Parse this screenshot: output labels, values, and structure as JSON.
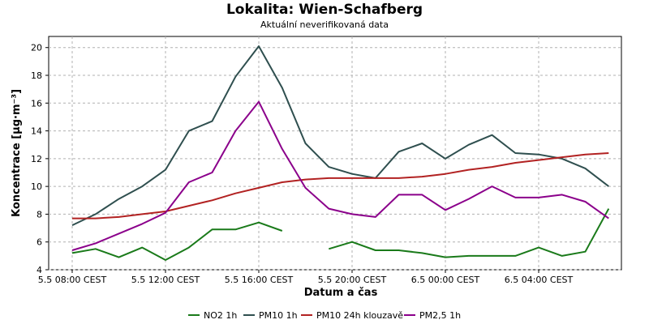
{
  "chart_data": {
    "type": "line",
    "title": "Lokalita: Wien-Schafberg",
    "subtitle": "Aktuální neverifikovaná data",
    "xlabel": "Datum a čas",
    "ylabel": "Koncentrace [µg·m⁻³]",
    "ylim": [
      4,
      20.8
    ],
    "yticks": [
      4,
      6,
      8,
      10,
      12,
      14,
      16,
      18,
      20
    ],
    "x": [
      "5.5 08:00",
      "5.5 09:00",
      "5.5 10:00",
      "5.5 11:00",
      "5.5 12:00",
      "5.5 13:00",
      "5.5 14:00",
      "5.5 15:00",
      "5.5 16:00",
      "5.5 17:00",
      "5.5 18:00",
      "5.5 19:00",
      "5.5 20:00",
      "5.5 21:00",
      "5.5 22:00",
      "5.5 23:00",
      "6.5 00:00",
      "6.5 01:00",
      "6.5 02:00",
      "6.5 03:00",
      "6.5 04:00",
      "6.5 05:00",
      "6.5 06:00",
      "6.5 07:00"
    ],
    "xticks": [
      "5.5 08:00 CEST",
      "5.5 12:00 CEST",
      "5.5 16:00 CEST",
      "5.5 20:00 CEST",
      "6.5 00:00 CEST",
      "6.5 04:00 CEST"
    ],
    "xtick_index": [
      0,
      4,
      8,
      12,
      16,
      20
    ],
    "grid": true,
    "legend_position": "bottom",
    "series": [
      {
        "name": "NO2 1h",
        "color": "#1a7a1a",
        "values": [
          5.2,
          5.5,
          4.9,
          5.6,
          4.7,
          5.6,
          6.9,
          6.9,
          7.4,
          6.8,
          null,
          5.5,
          6.0,
          5.4,
          5.4,
          5.2,
          4.9,
          5.0,
          5.0,
          5.0,
          5.6,
          5.0,
          5.3,
          8.4
        ]
      },
      {
        "name": "PM10 1h",
        "color": "#2f4f4f",
        "values": [
          7.2,
          8.0,
          9.1,
          10.0,
          11.2,
          14.0,
          14.7,
          17.9,
          20.1,
          17.1,
          13.1,
          11.4,
          10.9,
          10.6,
          12.5,
          13.1,
          12.0,
          13.0,
          13.7,
          12.4,
          12.3,
          12.0,
          11.3,
          10.0
        ]
      },
      {
        "name": "PM10 24h klouzavě",
        "color": "#b22222",
        "values": [
          7.7,
          7.7,
          7.8,
          8.0,
          8.2,
          8.6,
          9.0,
          9.5,
          9.9,
          10.3,
          10.5,
          10.6,
          10.6,
          10.6,
          10.6,
          10.7,
          10.9,
          11.2,
          11.4,
          11.7,
          11.9,
          12.1,
          12.3,
          12.4
        ]
      },
      {
        "name": "PM2,5 1h",
        "color": "#8b008b",
        "values": [
          5.4,
          5.9,
          6.6,
          7.3,
          8.1,
          10.3,
          11.0,
          14.0,
          16.1,
          12.7,
          9.9,
          8.4,
          8.0,
          7.8,
          9.4,
          9.4,
          8.3,
          9.1,
          10.0,
          9.2,
          9.2,
          9.4,
          8.9,
          7.7
        ]
      }
    ]
  }
}
